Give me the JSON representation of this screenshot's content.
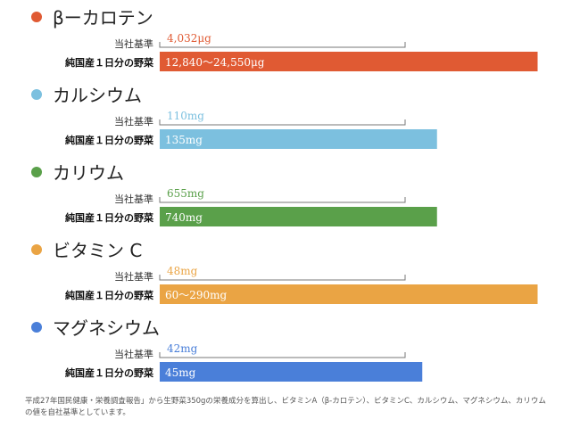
{
  "chart_data": {
    "type": "bar",
    "value_axis": "relative to company standard (bracket)",
    "row_labels": {
      "standard": "当社基準",
      "product": "純国産１日分の野菜"
    },
    "colors": {
      "beta_carotene": "#e05a33",
      "calcium": "#7cc0df",
      "potassium": "#5aa04a",
      "vitamin_c": "#eaa444",
      "magnesium": "#4a7fd9"
    },
    "groups": [
      {
        "key": "beta_carotene",
        "title": "βーカロテン",
        "standard_label": "4,032μg",
        "standard_value": 4032,
        "product_label": "12,840～24,550μg",
        "product_value": 12840,
        "product_value_max": 24550,
        "bar_ratio_to_standard": 1.54
      },
      {
        "key": "calcium",
        "title": "カルシウム",
        "standard_label": "110mg",
        "standard_value": 110,
        "product_label": "135mg",
        "product_value": 135,
        "bar_ratio_to_standard": 1.13
      },
      {
        "key": "potassium",
        "title": "カリウム",
        "standard_label": "655mg",
        "standard_value": 655,
        "product_label": "740mg",
        "product_value": 740,
        "bar_ratio_to_standard": 1.13
      },
      {
        "key": "vitamin_c",
        "title": "ビタミン C",
        "standard_label": "48mg",
        "standard_value": 48,
        "product_label": "60～290mg",
        "product_value": 60,
        "product_value_max": 290,
        "bar_ratio_to_standard": 1.54
      },
      {
        "key": "magnesium",
        "title": "マグネシウム",
        "standard_label": "42mg",
        "standard_value": 42,
        "product_label": "45mg",
        "product_value": 45,
        "bar_ratio_to_standard": 1.07
      }
    ]
  },
  "footnote": "平成27年国民健康・栄養調査報告」から生野菜350gの栄養成分を算出し、ビタミンA（β-カロテン）、ビタミンC、カルシウム、マグネシウム、カリウムの値を自社基準としています。"
}
